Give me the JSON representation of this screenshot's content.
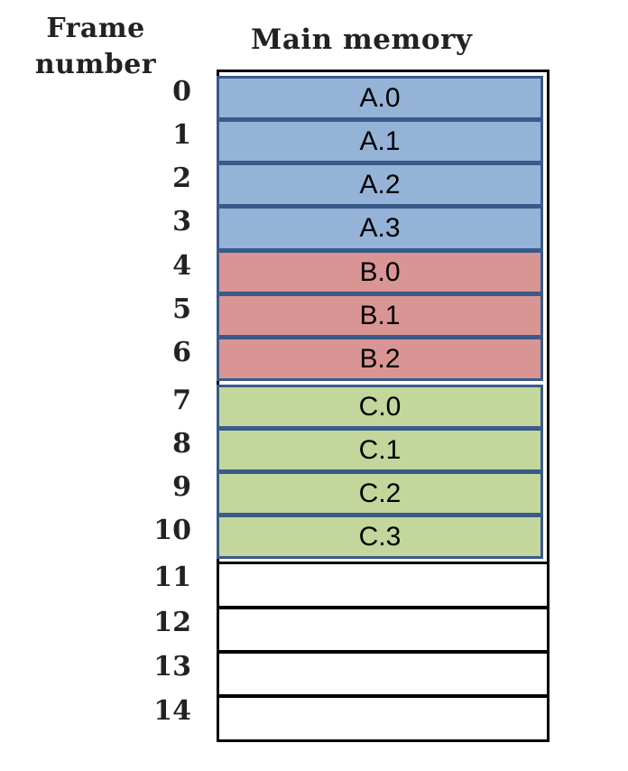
{
  "headers": {
    "frame_number_line1": "Frame",
    "frame_number_line2": "number",
    "main_memory": "Main memory"
  },
  "frames": [
    {
      "number": "0",
      "label": "A.0",
      "process": "A"
    },
    {
      "number": "1",
      "label": "A.1",
      "process": "A"
    },
    {
      "number": "2",
      "label": "A.2",
      "process": "A"
    },
    {
      "number": "3",
      "label": "A.3",
      "process": "A"
    },
    {
      "number": "4",
      "label": "B.0",
      "process": "B"
    },
    {
      "number": "5",
      "label": "B.1",
      "process": "B"
    },
    {
      "number": "6",
      "label": "B.2",
      "process": "B"
    },
    {
      "number": "7",
      "label": "C.0",
      "process": "C"
    },
    {
      "number": "8",
      "label": "C.1",
      "process": "C"
    },
    {
      "number": "9",
      "label": "C.2",
      "process": "C"
    },
    {
      "number": "10",
      "label": "C.3",
      "process": "C"
    },
    {
      "number": "11",
      "label": "",
      "process": ""
    },
    {
      "number": "12",
      "label": "",
      "process": ""
    },
    {
      "number": "13",
      "label": "",
      "process": ""
    },
    {
      "number": "14",
      "label": "",
      "process": ""
    }
  ],
  "colors": {
    "A": "#95b3d7",
    "B": "#d99594",
    "C": "#c3d69b"
  }
}
